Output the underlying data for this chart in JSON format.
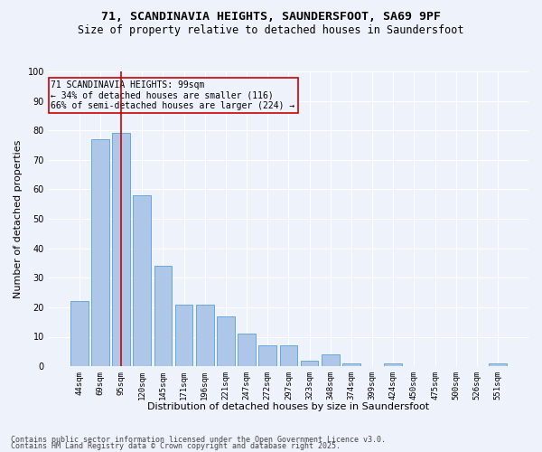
{
  "title": "71, SCANDINAVIA HEIGHTS, SAUNDERSFOOT, SA69 9PF",
  "subtitle": "Size of property relative to detached houses in Saundersfoot",
  "xlabel": "Distribution of detached houses by size in Saundersfoot",
  "ylabel": "Number of detached properties",
  "categories": [
    "44sqm",
    "69sqm",
    "95sqm",
    "120sqm",
    "145sqm",
    "171sqm",
    "196sqm",
    "221sqm",
    "247sqm",
    "272sqm",
    "297sqm",
    "323sqm",
    "348sqm",
    "374sqm",
    "399sqm",
    "424sqm",
    "450sqm",
    "475sqm",
    "500sqm",
    "526sqm",
    "551sqm"
  ],
  "values": [
    22,
    77,
    79,
    58,
    34,
    21,
    21,
    17,
    11,
    7,
    7,
    2,
    4,
    1,
    0,
    1,
    0,
    0,
    0,
    0,
    1
  ],
  "bar_color": "#aec6e8",
  "bar_edge_color": "#5a9fd4",
  "background_color": "#eef2fb",
  "grid_color": "#ffffff",
  "annotation_line1": "71 SCANDINAVIA HEIGHTS: 99sqm",
  "annotation_line2": "← 34% of detached houses are smaller (116)",
  "annotation_line3": "66% of semi-detached houses are larger (224) →",
  "annotation_box_color": "#cc0000",
  "vline_x_index": 2,
  "vline_color": "#cc0000",
  "ylim": [
    0,
    100
  ],
  "yticks": [
    0,
    10,
    20,
    30,
    40,
    50,
    60,
    70,
    80,
    90,
    100
  ],
  "footer_line1": "Contains HM Land Registry data © Crown copyright and database right 2025.",
  "footer_line2": "Contains public sector information licensed under the Open Government Licence v3.0.",
  "title_fontsize": 9.5,
  "subtitle_fontsize": 8.5,
  "tick_fontsize": 6.5,
  "ylabel_fontsize": 8,
  "xlabel_fontsize": 8,
  "annotation_fontsize": 7,
  "footer_fontsize": 6
}
